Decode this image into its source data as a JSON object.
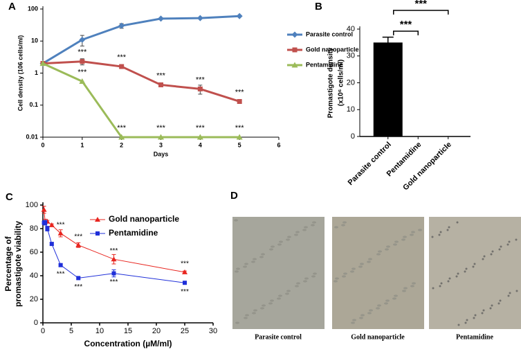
{
  "chart_data": [
    {
      "type": "line",
      "panel": "A",
      "log_y": true,
      "legend": "upper right",
      "xlabel": "Days",
      "ylabel": "Cell density (106 cells/ml)",
      "x": [
        0,
        1,
        2,
        3,
        4,
        5
      ],
      "xlim": [
        0,
        6
      ],
      "xticks": [
        0,
        1,
        2,
        3,
        4,
        5,
        6
      ],
      "ylim": [
        0.01,
        100
      ],
      "yticks": [
        0.01,
        0.1,
        1,
        10,
        100
      ],
      "series": [
        {
          "name": "Parasite control",
          "color": "#4f81bd",
          "marker": "diamond",
          "values": [
            2,
            11,
            30,
            50,
            52,
            60
          ],
          "errors": [
            null,
            4,
            5,
            2,
            2,
            2
          ],
          "significance": [
            null,
            null,
            null,
            null,
            null,
            null
          ]
        },
        {
          "name": "Gold nanoparticle",
          "color": "#c0504d",
          "marker": "square",
          "values": [
            2,
            2.3,
            1.6,
            0.43,
            0.32,
            0.13
          ],
          "errors": [
            null,
            0.5,
            0.2,
            0.05,
            0.1,
            0.01
          ],
          "significance": [
            null,
            "***",
            "***",
            "***",
            "***",
            "***"
          ]
        },
        {
          "name": "Pentamidine",
          "color": "#9bbb59",
          "marker": "triangle",
          "values": [
            2,
            0.55,
            0.01,
            0.01,
            0.01,
            0.01
          ],
          "errors": [
            null,
            null,
            null,
            null,
            null,
            null
          ],
          "significance": [
            null,
            "***",
            "***",
            "***",
            "***",
            "***"
          ]
        }
      ]
    },
    {
      "type": "bar",
      "panel": "B",
      "ylabel": [
        "Promastigote density",
        "(x10⁶ cells/ml)"
      ],
      "categories": [
        "Parasite control",
        "Pentamidine",
        "Gold nanoparticle"
      ],
      "values": [
        35,
        0,
        0
      ],
      "errors": [
        2,
        null,
        null
      ],
      "color": "#000000",
      "ylim": [
        0,
        40
      ],
      "yticks": [
        0,
        10,
        20,
        30,
        40
      ],
      "comparisons": [
        {
          "between": [
            0,
            1
          ],
          "label": "***"
        },
        {
          "between": [
            0,
            2
          ],
          "label": "***"
        }
      ]
    },
    {
      "type": "line",
      "panel": "C",
      "legend": "upper right",
      "xlabel": "Concentration (µM/ml)",
      "ylabel": [
        "Percentage of",
        "promastigote viability"
      ],
      "x": [
        0.195,
        0.39,
        0.78,
        1.56,
        3.125,
        6.25,
        12.5,
        25
      ],
      "xlim": [
        0,
        30
      ],
      "xticks": [
        0,
        5,
        10,
        15,
        20,
        25,
        30
      ],
      "ylim": [
        0,
        100
      ],
      "yticks": [
        0,
        20,
        40,
        60,
        80,
        100
      ],
      "series": [
        {
          "name": "Gold nanoparticle",
          "color": "#e8241e",
          "marker": "triangle",
          "values": [
            96,
            86,
            86,
            83,
            76,
            66,
            54,
            43
          ],
          "errors": [
            3,
            2,
            1,
            1,
            3,
            2,
            4,
            1
          ],
          "significance": [
            null,
            null,
            null,
            null,
            "***",
            "***",
            "***",
            "***"
          ]
        },
        {
          "name": "Pentamidine",
          "color": "#1f2fd9",
          "marker": "square",
          "values": [
            85,
            85,
            80,
            67,
            49,
            38,
            42,
            34
          ],
          "errors": [
            1,
            2,
            2,
            1,
            1,
            1,
            3,
            1
          ],
          "significance": [
            null,
            null,
            null,
            null,
            "***",
            "***",
            "***",
            "***"
          ]
        }
      ]
    }
  ],
  "micrographs": {
    "panel": "D",
    "captions": [
      "Parasite control",
      "Gold nanoparticle",
      "Pentamidine"
    ]
  }
}
